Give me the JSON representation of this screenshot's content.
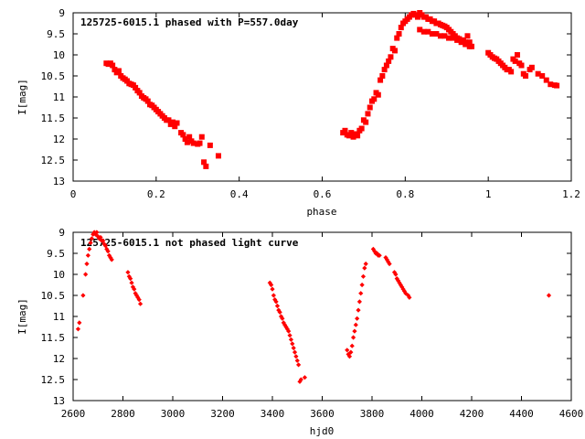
{
  "chart_data": [
    {
      "type": "scatter",
      "title": "125725-6015.1 phased with P=557.0day",
      "xlabel": "phase",
      "ylabel": "I[mag]",
      "xlim": [
        0,
        1.2
      ],
      "ylim": [
        13,
        9
      ],
      "y_inverted": true,
      "xticks": [
        "0",
        "0.2",
        "0.4",
        "0.6",
        "0.8",
        "1",
        "1.2"
      ],
      "yticks": [
        "9",
        "9.5",
        "10",
        "10.5",
        "11",
        "11.5",
        "12",
        "12.5",
        "13"
      ],
      "grid": false,
      "marker_color": "#ff0000",
      "marker": "filled-square",
      "series": [
        {
          "points": [
            [
              0.08,
              10.2
            ],
            [
              0.085,
              10.22
            ],
            [
              0.09,
              10.2
            ],
            [
              0.095,
              10.25
            ],
            [
              0.1,
              10.35
            ],
            [
              0.105,
              10.42
            ],
            [
              0.11,
              10.38
            ],
            [
              0.115,
              10.5
            ],
            [
              0.12,
              10.55
            ],
            [
              0.125,
              10.58
            ],
            [
              0.13,
              10.62
            ],
            [
              0.135,
              10.68
            ],
            [
              0.14,
              10.7
            ],
            [
              0.145,
              10.72
            ],
            [
              0.15,
              10.78
            ],
            [
              0.155,
              10.85
            ],
            [
              0.16,
              10.9
            ],
            [
              0.165,
              10.98
            ],
            [
              0.17,
              11.02
            ],
            [
              0.175,
              11.05
            ],
            [
              0.18,
              11.1
            ],
            [
              0.185,
              11.18
            ],
            [
              0.19,
              11.2
            ],
            [
              0.195,
              11.25
            ],
            [
              0.2,
              11.3
            ],
            [
              0.205,
              11.35
            ],
            [
              0.21,
              11.4
            ],
            [
              0.215,
              11.45
            ],
            [
              0.22,
              11.5
            ],
            [
              0.225,
              11.55
            ],
            [
              0.23,
              11.55
            ],
            [
              0.235,
              11.65
            ],
            [
              0.24,
              11.6
            ],
            [
              0.245,
              11.7
            ],
            [
              0.25,
              11.62
            ],
            [
              0.26,
              11.85
            ],
            [
              0.265,
              11.9
            ],
            [
              0.27,
              12.0
            ],
            [
              0.275,
              12.08
            ],
            [
              0.28,
              11.95
            ],
            [
              0.285,
              12.05
            ],
            [
              0.29,
              12.1
            ],
            [
              0.3,
              12.12
            ],
            [
              0.305,
              12.1
            ],
            [
              0.31,
              11.95
            ],
            [
              0.315,
              12.55
            ],
            [
              0.32,
              12.65
            ],
            [
              0.33,
              12.15
            ],
            [
              0.35,
              12.4
            ],
            [
              0.65,
              11.85
            ],
            [
              0.655,
              11.8
            ],
            [
              0.66,
              11.9
            ],
            [
              0.665,
              11.92
            ],
            [
              0.67,
              11.85
            ],
            [
              0.675,
              11.95
            ],
            [
              0.68,
              11.88
            ],
            [
              0.685,
              11.92
            ],
            [
              0.69,
              11.8
            ],
            [
              0.695,
              11.75
            ],
            [
              0.7,
              11.55
            ],
            [
              0.705,
              11.6
            ],
            [
              0.71,
              11.4
            ],
            [
              0.715,
              11.25
            ],
            [
              0.72,
              11.1
            ],
            [
              0.725,
              11.05
            ],
            [
              0.73,
              10.9
            ],
            [
              0.735,
              10.95
            ],
            [
              0.74,
              10.6
            ],
            [
              0.745,
              10.5
            ],
            [
              0.75,
              10.35
            ],
            [
              0.755,
              10.25
            ],
            [
              0.76,
              10.15
            ],
            [
              0.765,
              10.05
            ],
            [
              0.77,
              9.85
            ],
            [
              0.775,
              9.9
            ],
            [
              0.78,
              9.6
            ],
            [
              0.785,
              9.5
            ],
            [
              0.79,
              9.35
            ],
            [
              0.795,
              9.25
            ],
            [
              0.8,
              9.2
            ],
            [
              0.805,
              9.15
            ],
            [
              0.81,
              9.1
            ],
            [
              0.815,
              9.05
            ],
            [
              0.82,
              9.02
            ],
            [
              0.825,
              9.05
            ],
            [
              0.83,
              9.1
            ],
            [
              0.835,
              9.0
            ],
            [
              0.84,
              9.05
            ],
            [
              0.845,
              9.1
            ],
            [
              0.85,
              9.1
            ],
            [
              0.855,
              9.15
            ],
            [
              0.86,
              9.15
            ],
            [
              0.865,
              9.2
            ],
            [
              0.87,
              9.2
            ],
            [
              0.875,
              9.25
            ],
            [
              0.88,
              9.25
            ],
            [
              0.885,
              9.28
            ],
            [
              0.89,
              9.3
            ],
            [
              0.895,
              9.32
            ],
            [
              0.9,
              9.35
            ],
            [
              0.905,
              9.4
            ],
            [
              0.91,
              9.45
            ],
            [
              0.915,
              9.5
            ],
            [
              0.92,
              9.55
            ],
            [
              0.925,
              9.6
            ],
            [
              0.93,
              9.62
            ],
            [
              0.935,
              9.65
            ],
            [
              0.94,
              9.65
            ],
            [
              0.945,
              9.7
            ],
            [
              0.95,
              9.55
            ],
            [
              0.955,
              9.7
            ],
            [
              0.96,
              9.8
            ],
            [
              0.835,
              9.4
            ],
            [
              0.845,
              9.45
            ],
            [
              0.855,
              9.45
            ],
            [
              0.865,
              9.5
            ],
            [
              0.875,
              9.5
            ],
            [
              0.885,
              9.55
            ],
            [
              0.895,
              9.55
            ],
            [
              0.905,
              9.6
            ],
            [
              0.915,
              9.6
            ],
            [
              0.925,
              9.65
            ],
            [
              0.935,
              9.7
            ],
            [
              0.945,
              9.75
            ],
            [
              0.955,
              9.8
            ],
            [
              1.0,
              9.95
            ],
            [
              1.005,
              10.0
            ],
            [
              1.01,
              10.05
            ],
            [
              1.015,
              10.08
            ],
            [
              1.02,
              10.1
            ],
            [
              1.025,
              10.15
            ],
            [
              1.03,
              10.2
            ],
            [
              1.035,
              10.25
            ],
            [
              1.04,
              10.3
            ],
            [
              1.045,
              10.35
            ],
            [
              1.05,
              10.35
            ],
            [
              1.055,
              10.4
            ],
            [
              1.06,
              10.1
            ],
            [
              1.065,
              10.15
            ],
            [
              1.07,
              10.0
            ],
            [
              1.075,
              10.2
            ],
            [
              1.08,
              10.25
            ],
            [
              1.085,
              10.45
            ],
            [
              1.09,
              10.5
            ],
            [
              1.1,
              10.35
            ],
            [
              1.105,
              10.3
            ],
            [
              1.12,
              10.45
            ],
            [
              1.13,
              10.5
            ],
            [
              1.14,
              10.6
            ],
            [
              1.15,
              10.7
            ],
            [
              1.16,
              10.72
            ],
            [
              1.165,
              10.73
            ]
          ]
        }
      ]
    },
    {
      "type": "scatter",
      "title": "125725-6015.1 not phased light curve",
      "xlabel": "hjd0",
      "ylabel": "I[mag]",
      "xlim": [
        2600,
        4600
      ],
      "ylim": [
        13,
        9
      ],
      "y_inverted": true,
      "xticks": [
        "2600",
        "2800",
        "3000",
        "3200",
        "3400",
        "3600",
        "3800",
        "4000",
        "4200",
        "4400",
        "4600"
      ],
      "yticks": [
        "9",
        "9.5",
        "10",
        "10.5",
        "11",
        "11.5",
        "12",
        "12.5",
        "13"
      ],
      "grid": false,
      "marker_color": "#ff0000",
      "marker": "filled-diamond",
      "series": [
        {
          "points": [
            [
              2620,
              11.3
            ],
            [
              2625,
              11.15
            ],
            [
              2640,
              10.5
            ],
            [
              2650,
              10.0
            ],
            [
              2655,
              9.75
            ],
            [
              2660,
              9.55
            ],
            [
              2665,
              9.4
            ],
            [
              2670,
              9.25
            ],
            [
              2675,
              9.15
            ],
            [
              2680,
              9.05
            ],
            [
              2685,
              9.0
            ],
            [
              2690,
              9.05
            ],
            [
              2695,
              9.0
            ],
            [
              2700,
              9.1
            ],
            [
              2705,
              9.15
            ],
            [
              2710,
              9.12
            ],
            [
              2715,
              9.2
            ],
            [
              2720,
              9.2
            ],
            [
              2725,
              9.28
            ],
            [
              2730,
              9.32
            ],
            [
              2735,
              9.4
            ],
            [
              2740,
              9.45
            ],
            [
              2745,
              9.55
            ],
            [
              2750,
              9.6
            ],
            [
              2755,
              9.65
            ],
            [
              2820,
              9.95
            ],
            [
              2825,
              10.05
            ],
            [
              2830,
              10.1
            ],
            [
              2835,
              10.2
            ],
            [
              2840,
              10.3
            ],
            [
              2845,
              10.35
            ],
            [
              2850,
              10.45
            ],
            [
              2855,
              10.5
            ],
            [
              2860,
              10.55
            ],
            [
              2865,
              10.6
            ],
            [
              2870,
              10.7
            ],
            [
              3390,
              10.2
            ],
            [
              3395,
              10.25
            ],
            [
              3400,
              10.35
            ],
            [
              3405,
              10.5
            ],
            [
              3410,
              10.6
            ],
            [
              3415,
              10.65
            ],
            [
              3420,
              10.75
            ],
            [
              3425,
              10.85
            ],
            [
              3430,
              10.9
            ],
            [
              3435,
              11.0
            ],
            [
              3440,
              11.05
            ],
            [
              3445,
              11.15
            ],
            [
              3450,
              11.2
            ],
            [
              3455,
              11.25
            ],
            [
              3460,
              11.3
            ],
            [
              3465,
              11.35
            ],
            [
              3470,
              11.45
            ],
            [
              3475,
              11.55
            ],
            [
              3480,
              11.65
            ],
            [
              3485,
              11.75
            ],
            [
              3490,
              11.85
            ],
            [
              3495,
              11.95
            ],
            [
              3500,
              12.05
            ],
            [
              3505,
              12.15
            ],
            [
              3510,
              12.55
            ],
            [
              3515,
              12.5
            ],
            [
              3530,
              12.45
            ],
            [
              3700,
              11.8
            ],
            [
              3705,
              11.9
            ],
            [
              3710,
              11.95
            ],
            [
              3715,
              11.85
            ],
            [
              3720,
              11.7
            ],
            [
              3725,
              11.5
            ],
            [
              3730,
              11.35
            ],
            [
              3735,
              11.2
            ],
            [
              3740,
              11.05
            ],
            [
              3745,
              10.85
            ],
            [
              3750,
              10.65
            ],
            [
              3755,
              10.45
            ],
            [
              3760,
              10.25
            ],
            [
              3765,
              10.05
            ],
            [
              3770,
              9.85
            ],
            [
              3775,
              9.75
            ],
            [
              3805,
              9.4
            ],
            [
              3810,
              9.45
            ],
            [
              3815,
              9.5
            ],
            [
              3820,
              9.5
            ],
            [
              3825,
              9.55
            ],
            [
              3830,
              9.55
            ],
            [
              3855,
              9.6
            ],
            [
              3860,
              9.65
            ],
            [
              3865,
              9.7
            ],
            [
              3870,
              9.75
            ],
            [
              3890,
              9.95
            ],
            [
              3895,
              10.0
            ],
            [
              3900,
              10.1
            ],
            [
              3905,
              10.15
            ],
            [
              3910,
              10.2
            ],
            [
              3915,
              10.25
            ],
            [
              3920,
              10.3
            ],
            [
              3925,
              10.35
            ],
            [
              3930,
              10.4
            ],
            [
              3935,
              10.45
            ],
            [
              3945,
              10.5
            ],
            [
              3950,
              10.55
            ],
            [
              4510,
              10.5
            ]
          ]
        }
      ]
    }
  ]
}
